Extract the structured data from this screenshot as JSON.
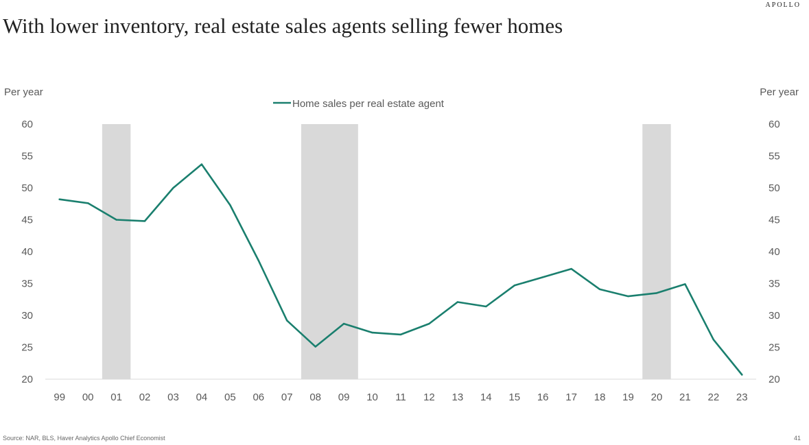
{
  "brand": "APOLLO",
  "title": "With lower inventory, real estate sales agents selling fewer homes",
  "source": "Source: NAR, BLS, Haver Analytics Apollo Chief Economist",
  "page_number": "41",
  "chart_data": {
    "type": "line",
    "y_left_label": "Per year",
    "y_right_label": "Per year",
    "legend_position": "top-center",
    "ylim": [
      20,
      60
    ],
    "yticks": [
      20,
      25,
      30,
      35,
      40,
      45,
      50,
      55,
      60
    ],
    "categories": [
      "99",
      "00",
      "01",
      "02",
      "03",
      "04",
      "05",
      "06",
      "07",
      "08",
      "09",
      "10",
      "11",
      "12",
      "13",
      "14",
      "15",
      "16",
      "17",
      "18",
      "19",
      "20",
      "21",
      "22",
      "23"
    ],
    "series": [
      {
        "name": "Home sales per real estate agent",
        "color": "#1a7f6e",
        "values": [
          48.2,
          47.6,
          45.0,
          44.8,
          50.0,
          53.7,
          47.3,
          38.6,
          29.2,
          25.1,
          28.7,
          27.3,
          27.0,
          28.7,
          32.1,
          31.4,
          34.7,
          36.0,
          37.3,
          34.1,
          33.0,
          33.5,
          34.9,
          26.2,
          20.7
        ]
      }
    ],
    "recessions": [
      {
        "start": "00",
        "end": "01"
      },
      {
        "start": "07",
        "end": "09"
      },
      {
        "start": "19",
        "end": "20"
      }
    ],
    "recession_color": "#d9d9d9"
  }
}
